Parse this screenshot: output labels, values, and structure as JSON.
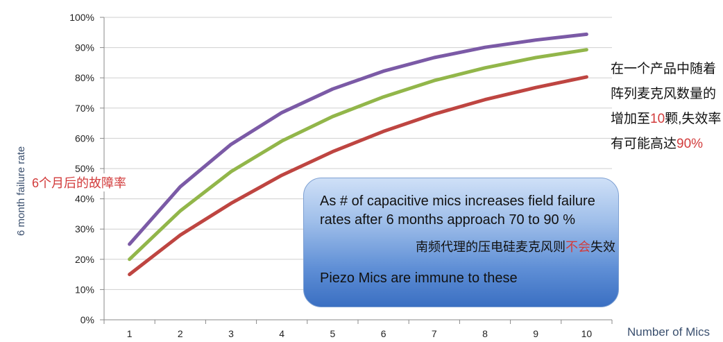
{
  "chart_data": {
    "type": "line",
    "x": [
      1,
      2,
      3,
      4,
      5,
      6,
      7,
      8,
      9,
      10
    ],
    "categories": [
      "1",
      "2",
      "3",
      "4",
      "5",
      "6",
      "7",
      "8",
      "9",
      "10"
    ],
    "series": [
      {
        "values": [
          25,
          44,
          58,
          68.5,
          76.3,
          82.2,
          86.7,
          90.1,
          92.5,
          94.4
        ],
        "color": "#7b5aa6"
      },
      {
        "values": [
          20,
          36,
          49,
          59.1,
          67.2,
          73.7,
          79.1,
          83.3,
          86.7,
          89.3
        ],
        "color": "#92b64a"
      },
      {
        "values": [
          15,
          28,
          38.5,
          47.8,
          55.6,
          62.3,
          68,
          72.8,
          76.8,
          80.3
        ],
        "color": "#be4541"
      }
    ],
    "y_ticks": [
      "0%",
      "10%",
      "20%",
      "30%",
      "40%",
      "50%",
      "60%",
      "70%",
      "80%",
      "90%",
      "100%"
    ],
    "ylim": [
      0,
      100
    ],
    "xlim": [
      0.5,
      10.5
    ],
    "xlabel": "Number of Mics",
    "ylabel": "6 month failure rate",
    "grid": "horizontal"
  },
  "annotations": {
    "y_cn": "6个月后的故障率",
    "note_cn_a": "在一个产品中随着阵列麦克风数量的增加至",
    "note_cn_red1": "10",
    "note_cn_b": "颗,失效率有可能高达",
    "note_cn_red2": "90%",
    "box_line1": "As # of capacitive mics increases field failure rates after 6 months approach 70 to 90 %",
    "box_line2": "Piezo Mics are immune to these",
    "piezo_cn_a": "南频代理的压电硅麦克风则",
    "piezo_cn_red": "不会",
    "piezo_cn_b": "失效"
  }
}
